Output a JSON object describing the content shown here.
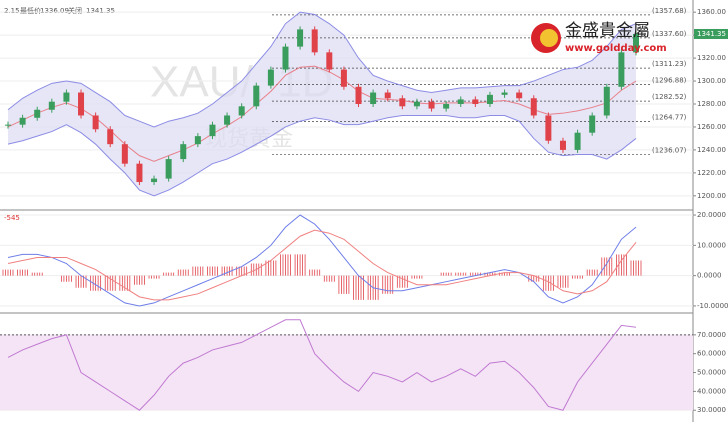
{
  "header": {
    "date": "2.15",
    "low_label": "最低价",
    "low": "1336.09",
    "close_label": "关闭",
    "close": "1341.35"
  },
  "watermark": {
    "symbol": "XAU/, 1D",
    "name": "现货黄金"
  },
  "logo": {
    "name": "金盛貴金屬",
    "url": "www.goldday.com"
  },
  "chart_data": [
    {
      "type": "candlestick",
      "values": [
        1262,
        1268,
        1275,
        1282,
        1290,
        1270,
        1258,
        1245,
        1228,
        1212,
        1215,
        1232,
        1245,
        1252,
        1262,
        1270,
        1278,
        1296,
        1310,
        1330,
        1345,
        1325,
        1310,
        1295,
        1280,
        1290,
        1285,
        1278,
        1282,
        1276,
        1280,
        1284,
        1280,
        1288,
        1290,
        1285,
        1270,
        1248,
        1240,
        1255,
        1270,
        1295,
        1325,
        1341
      ],
      "series": [
        {
          "name": "upper",
          "color": "#8c8ce6",
          "values": [
            1275,
            1285,
            1292,
            1298,
            1300,
            1298,
            1290,
            1282,
            1270,
            1265,
            1260,
            1265,
            1268,
            1272,
            1280,
            1290,
            1300,
            1315,
            1330,
            1350,
            1360,
            1358,
            1350,
            1340,
            1320,
            1305,
            1300,
            1296,
            1292,
            1290,
            1292,
            1294,
            1294,
            1295,
            1296,
            1296,
            1300,
            1305,
            1310,
            1312,
            1318,
            1330,
            1345,
            1350
          ]
        },
        {
          "name": "middle",
          "color": "#e97f8a",
          "values": [
            1260,
            1266,
            1272,
            1277,
            1281,
            1276,
            1268,
            1257,
            1245,
            1235,
            1230,
            1235,
            1240,
            1246,
            1254,
            1261,
            1269,
            1280,
            1291,
            1305,
            1312,
            1313,
            1308,
            1301,
            1291,
            1285,
            1284,
            1283,
            1281,
            1280,
            1281,
            1281,
            1281,
            1282,
            1283,
            1280,
            1275,
            1271,
            1272,
            1274,
            1277,
            1281,
            1292,
            1300
          ]
        },
        {
          "name": "lower",
          "color": "#8c8ce6",
          "values": [
            1245,
            1248,
            1252,
            1256,
            1262,
            1255,
            1245,
            1232,
            1220,
            1205,
            1200,
            1205,
            1212,
            1220,
            1228,
            1232,
            1238,
            1245,
            1252,
            1260,
            1265,
            1268,
            1266,
            1262,
            1262,
            1265,
            1268,
            1270,
            1270,
            1270,
            1270,
            1268,
            1268,
            1270,
            1270,
            1265,
            1250,
            1238,
            1235,
            1236,
            1236,
            1232,
            1240,
            1250
          ]
        }
      ],
      "up_color": "#3a9d5d",
      "down_color": "#e0424a",
      "band_fill": "#dcdcf2",
      "ylim": [
        1192,
        1368
      ],
      "yticks": [
        {
          "value": 1200,
          "label": "1200.00"
        },
        {
          "value": 1220,
          "label": "1220.00"
        },
        {
          "value": 1240,
          "label": "1240.00"
        },
        {
          "value": 1260,
          "label": "1260.00"
        },
        {
          "value": 1280,
          "label": "1280.00"
        },
        {
          "value": 1300,
          "label": "1300.00"
        },
        {
          "value": 1320,
          "label": "1320.00"
        },
        {
          "value": 1340,
          "label": "1340.00"
        },
        {
          "value": 1360,
          "label": "1360.00"
        }
      ],
      "levels": [
        {
          "value": 1357.68,
          "label": "(1357.68)"
        },
        {
          "value": 1337.6,
          "label": "(1337.60)"
        },
        {
          "value": 1311.23,
          "label": "(1311.23)"
        },
        {
          "value": 1296.88,
          "label": "(1296.88)"
        },
        {
          "value": 1282.52,
          "label": "(1282.52)"
        },
        {
          "value": 1264.77,
          "label": "(1264.77)"
        },
        {
          "value": 1236.07,
          "label": "(1236.07)"
        }
      ]
    },
    {
      "type": "macd",
      "label": "-545",
      "series": [
        {
          "name": "macd",
          "color": "#6e7ee8",
          "values": [
            6,
            7,
            7,
            6,
            4,
            0,
            -3,
            -6,
            -9,
            -10,
            -9,
            -7,
            -5,
            -3,
            -1,
            1,
            3,
            6,
            10,
            16,
            20,
            17,
            12,
            6,
            0,
            -4,
            -5,
            -5,
            -4,
            -3,
            -2,
            -1,
            0,
            1,
            2,
            1,
            -2,
            -7,
            -9,
            -7,
            -3,
            4,
            12,
            16
          ]
        },
        {
          "name": "signal",
          "color": "#f08080",
          "values": [
            4,
            5,
            6,
            6,
            6,
            4,
            2,
            -1,
            -4,
            -7,
            -8,
            -8,
            -7,
            -6,
            -4,
            -2,
            0,
            2,
            5,
            9,
            13,
            15,
            14,
            12,
            8,
            4,
            1,
            -1,
            -3,
            -3,
            -3,
            -2,
            -1,
            0,
            1,
            1,
            0,
            -2,
            -5,
            -6,
            -5,
            -2,
            5,
            11
          ]
        }
      ],
      "histogram": [
        2,
        2,
        1,
        0,
        -2,
        -4,
        -5,
        -5,
        -5,
        -3,
        -1,
        1,
        2,
        3,
        3,
        3,
        3,
        4,
        5,
        7,
        7,
        2,
        -2,
        -6,
        -8,
        -8,
        -6,
        -4,
        -1,
        0,
        1,
        1,
        1,
        1,
        1,
        0,
        -2,
        -5,
        -4,
        -1,
        2,
        6,
        7,
        5
      ],
      "up_color": "#e0424a",
      "down_color": "#e0424a",
      "ylim": [
        -12,
        21
      ],
      "yticks": [
        {
          "value": 20,
          "label": "20.0000"
        },
        {
          "value": 10,
          "label": "10.0000"
        },
        {
          "value": 0,
          "label": "0.0000"
        },
        {
          "value": -10,
          "label": "-10.0000"
        }
      ]
    },
    {
      "type": "rsi",
      "series": [
        {
          "name": "rsi",
          "color": "#c07ad2",
          "values": [
            58,
            62,
            65,
            68,
            70,
            50,
            45,
            40,
            35,
            30,
            38,
            48,
            55,
            58,
            62,
            64,
            66,
            70,
            74,
            78,
            78,
            60,
            52,
            45,
            40,
            50,
            48,
            45,
            50,
            45,
            48,
            52,
            48,
            55,
            56,
            50,
            42,
            32,
            30,
            45,
            55,
            65,
            75,
            74
          ]
        }
      ],
      "band": [
        30,
        70
      ],
      "band_fill": "#f5e4f5",
      "ylim": [
        28,
        80
      ],
      "yticks": [
        {
          "value": 30,
          "label": "30.0000"
        },
        {
          "value": 40,
          "label": "40.0000"
        },
        {
          "value": 50,
          "label": "50.0000"
        },
        {
          "value": 60,
          "label": "60.0000"
        },
        {
          "value": 70,
          "label": "70.0000"
        }
      ]
    }
  ]
}
